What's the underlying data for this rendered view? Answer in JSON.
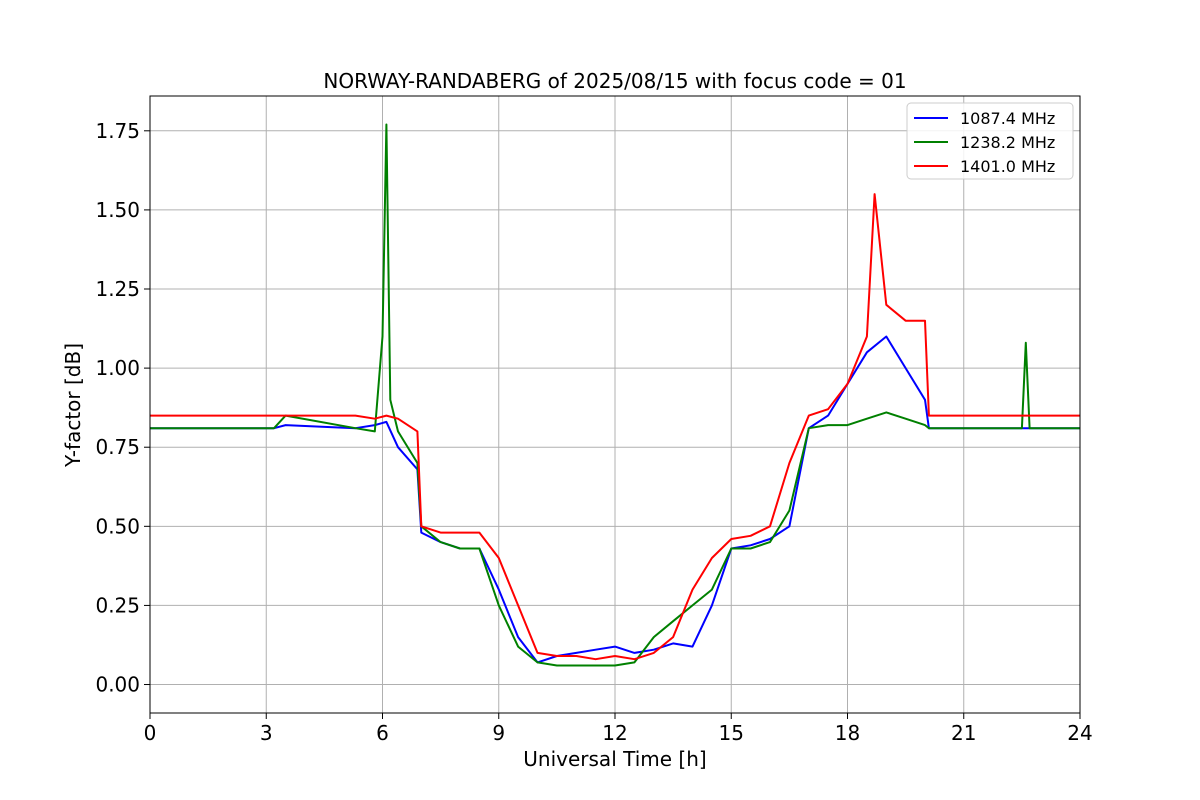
{
  "chart_data": {
    "type": "line",
    "title": "NORWAY-RANDABERG of 2025/08/15 with focus code = 01",
    "xlabel": "Universal Time [h]",
    "ylabel": "Y-factor [dB]",
    "xlim": [
      0,
      24
    ],
    "ylim": [
      -0.09,
      1.86
    ],
    "xticks": [
      0,
      3,
      6,
      9,
      12,
      15,
      18,
      21,
      24
    ],
    "xtick_labels": [
      "0",
      "3",
      "6",
      "9",
      "12",
      "15",
      "18",
      "21",
      "24"
    ],
    "yticks": [
      0,
      0.25,
      0.5,
      0.75,
      1.0,
      1.25,
      1.5,
      1.75
    ],
    "ytick_labels": [
      "0.00",
      "0.25",
      "0.50",
      "0.75",
      "1.00",
      "1.25",
      "1.50",
      "1.75"
    ],
    "grid": true,
    "legend_position": "upper right",
    "series": [
      {
        "name": "1087.4 MHz",
        "color": "#0000ff",
        "x": [
          0,
          3.2,
          3.5,
          5.3,
          5.8,
          6.1,
          6.4,
          6.9,
          7.0,
          7.5,
          8.0,
          8.5,
          9.0,
          9.5,
          10.0,
          10.5,
          11.0,
          11.5,
          12.0,
          12.5,
          13.0,
          13.5,
          14.0,
          14.5,
          15.0,
          15.5,
          16.0,
          16.5,
          17.0,
          17.5,
          18.0,
          18.5,
          19.0,
          19.5,
          20.0,
          20.1,
          24
        ],
        "y": [
          0.81,
          0.81,
          0.82,
          0.81,
          0.82,
          0.83,
          0.75,
          0.68,
          0.48,
          0.45,
          0.43,
          0.43,
          0.3,
          0.15,
          0.07,
          0.09,
          0.1,
          0.11,
          0.12,
          0.1,
          0.11,
          0.13,
          0.12,
          0.25,
          0.43,
          0.44,
          0.46,
          0.5,
          0.81,
          0.85,
          0.95,
          1.05,
          1.1,
          1.0,
          0.9,
          0.81,
          0.81
        ]
      },
      {
        "name": "1238.2 MHz",
        "color": "#008000",
        "x": [
          0,
          3.2,
          3.5,
          5.3,
          5.8,
          6.0,
          6.1,
          6.2,
          6.4,
          6.9,
          7.0,
          7.5,
          8.0,
          8.5,
          9.0,
          9.5,
          10.0,
          10.5,
          11.0,
          11.5,
          12.0,
          12.5,
          13.0,
          13.5,
          14.0,
          14.5,
          15.0,
          15.5,
          16.0,
          16.5,
          17.0,
          17.5,
          18.0,
          18.5,
          19.0,
          19.5,
          20.0,
          20.1,
          22.5,
          22.6,
          22.7,
          24
        ],
        "y": [
          0.81,
          0.81,
          0.85,
          0.81,
          0.8,
          1.1,
          1.77,
          0.9,
          0.8,
          0.7,
          0.5,
          0.45,
          0.43,
          0.43,
          0.25,
          0.12,
          0.07,
          0.06,
          0.06,
          0.06,
          0.06,
          0.07,
          0.15,
          0.2,
          0.25,
          0.3,
          0.43,
          0.43,
          0.45,
          0.55,
          0.81,
          0.82,
          0.82,
          0.84,
          0.86,
          0.84,
          0.82,
          0.81,
          0.81,
          1.08,
          0.81,
          0.81
        ]
      },
      {
        "name": "1401.0 MHz",
        "color": "#ff0000",
        "x": [
          0,
          3.2,
          3.5,
          5.3,
          5.8,
          6.1,
          6.4,
          6.9,
          7.0,
          7.5,
          8.0,
          8.5,
          9.0,
          9.5,
          10.0,
          10.5,
          11.0,
          11.5,
          12.0,
          12.5,
          13.0,
          13.5,
          14.0,
          14.5,
          15.0,
          15.5,
          16.0,
          16.5,
          17.0,
          17.5,
          18.0,
          18.5,
          18.7,
          19.0,
          19.5,
          20.0,
          20.1,
          24
        ],
        "y": [
          0.85,
          0.85,
          0.85,
          0.85,
          0.84,
          0.85,
          0.84,
          0.8,
          0.5,
          0.48,
          0.48,
          0.48,
          0.4,
          0.25,
          0.1,
          0.09,
          0.09,
          0.08,
          0.09,
          0.08,
          0.1,
          0.15,
          0.3,
          0.4,
          0.46,
          0.47,
          0.5,
          0.7,
          0.85,
          0.87,
          0.95,
          1.1,
          1.55,
          1.2,
          1.15,
          1.15,
          0.85,
          0.85
        ]
      }
    ]
  }
}
